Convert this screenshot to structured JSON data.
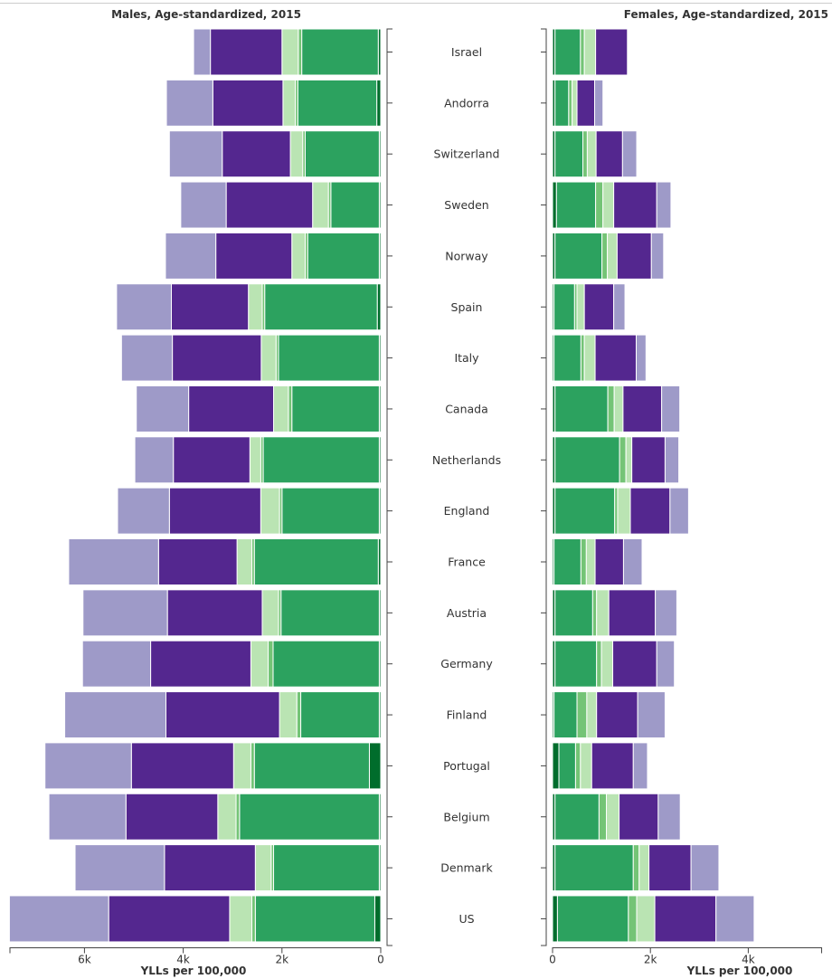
{
  "chart_data": {
    "type": "bar",
    "orientation": "horizontal-diverging",
    "categories": [
      "Israel",
      "Andorra",
      "Switzerland",
      "Sweden",
      "Norway",
      "Spain",
      "Italy",
      "Canada",
      "Netherlands",
      "England",
      "France",
      "Austria",
      "Germany",
      "Finland",
      "Portugal",
      "Belgium",
      "Denmark",
      "US"
    ],
    "colors": [
      "#006d2c",
      "#2ca25f",
      "#74c476",
      "#bae4b3",
      "#54278f",
      "#9e9ac8"
    ],
    "panels": [
      {
        "title": "Males, Age-standardized, 2015",
        "xlabel": "YLLs per 100,000",
        "xlim": [
          0,
          7500
        ],
        "ticks": [
          0,
          2000,
          4000,
          6000
        ],
        "tick_labels": [
          "0",
          "2k",
          "4k",
          "6k"
        ],
        "segments": [
          [
            50,
            1550,
            70,
            330,
            1450,
            340
          ],
          [
            80,
            1600,
            50,
            250,
            1420,
            940
          ],
          [
            30,
            1500,
            50,
            250,
            1380,
            1070
          ],
          [
            30,
            980,
            50,
            320,
            1750,
            920
          ],
          [
            30,
            1450,
            50,
            270,
            1540,
            1020
          ],
          [
            70,
            2280,
            50,
            280,
            1560,
            1110
          ],
          [
            30,
            2040,
            50,
            300,
            1800,
            1030
          ],
          [
            30,
            1770,
            70,
            300,
            1720,
            1060
          ],
          [
            30,
            2350,
            50,
            220,
            1550,
            780
          ],
          [
            30,
            1970,
            50,
            380,
            1850,
            1050
          ],
          [
            50,
            2510,
            50,
            300,
            1590,
            1820
          ],
          [
            30,
            1990,
            50,
            330,
            1920,
            1710
          ],
          [
            30,
            2150,
            100,
            350,
            2030,
            1380
          ],
          [
            30,
            1590,
            80,
            350,
            2300,
            2050
          ],
          [
            230,
            2330,
            70,
            350,
            2070,
            1750
          ],
          [
            30,
            2830,
            70,
            370,
            1860,
            1560
          ],
          [
            30,
            2140,
            50,
            320,
            1840,
            1810
          ],
          [
            120,
            2420,
            70,
            450,
            2450,
            2010
          ]
        ]
      },
      {
        "title": "Females, Age-standardized, 2015",
        "xlabel": "YLLs per 100,000",
        "xlim": [
          0,
          5500
        ],
        "ticks": [
          0,
          2000,
          4000
        ],
        "tick_labels": [
          "0",
          "2k",
          "4k"
        ],
        "segments": [
          [
            50,
            520,
            80,
            230,
            650,
            0
          ],
          [
            50,
            280,
            70,
            100,
            360,
            170
          ],
          [
            50,
            570,
            90,
            180,
            540,
            290
          ],
          [
            80,
            800,
            150,
            220,
            880,
            290
          ],
          [
            50,
            960,
            110,
            200,
            700,
            250
          ],
          [
            30,
            420,
            50,
            150,
            600,
            230
          ],
          [
            30,
            550,
            70,
            220,
            840,
            200
          ],
          [
            50,
            1080,
            130,
            180,
            790,
            370
          ],
          [
            50,
            1320,
            130,
            120,
            680,
            280
          ],
          [
            50,
            1220,
            60,
            260,
            810,
            380
          ],
          [
            30,
            550,
            110,
            180,
            580,
            380
          ],
          [
            50,
            770,
            80,
            250,
            950,
            440
          ],
          [
            50,
            850,
            100,
            230,
            900,
            360
          ],
          [
            30,
            470,
            200,
            200,
            840,
            560
          ],
          [
            130,
            340,
            100,
            230,
            850,
            290
          ],
          [
            50,
            900,
            150,
            260,
            800,
            450
          ],
          [
            50,
            1600,
            120,
            200,
            860,
            570
          ],
          [
            100,
            1450,
            170,
            370,
            1250,
            780
          ]
        ]
      }
    ]
  }
}
